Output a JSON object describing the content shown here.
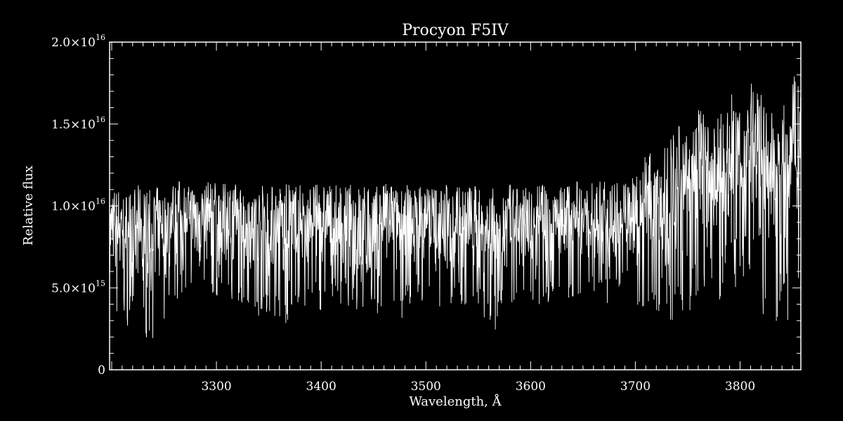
{
  "chart_data": {
    "type": "line",
    "title": "Procyon  F5IV",
    "xlabel": "Wavelength, Å",
    "ylabel": "Relative flux",
    "xlim": [
      3198,
      3858
    ],
    "ylim": [
      0,
      2e+16
    ],
    "x_ticks": [
      {
        "value": 3300,
        "label": "3300"
      },
      {
        "value": 3400,
        "label": "3400"
      },
      {
        "value": 3500,
        "label": "3500"
      },
      {
        "value": 3600,
        "label": "3600"
      },
      {
        "value": 3700,
        "label": "3700"
      },
      {
        "value": 3800,
        "label": "3800"
      }
    ],
    "y_ticks": [
      {
        "value": 0,
        "label": "0",
        "mantissa": "",
        "exponent": ""
      },
      {
        "value": 5000000000000000.0,
        "label": "5.0×10^15",
        "mantissa": "5.0×10",
        "exponent": "15"
      },
      {
        "value": 1e+16,
        "label": "1.0×10^16",
        "mantissa": "1.0×10",
        "exponent": "16"
      },
      {
        "value": 1.5e+16,
        "label": "1.5×10^16",
        "mantissa": "1.5×10",
        "exponent": "16"
      },
      {
        "value": 2e+16,
        "label": "2.0×10^16",
        "mantissa": "2.0×10",
        "exponent": "16"
      }
    ],
    "x_minor_step": 10,
    "y_minor_step": 1000000000000000.0,
    "grid": false,
    "legend": "none",
    "colors": {
      "background": "#000000",
      "foreground": "#ffffff"
    },
    "series": [
      {
        "x": [
          3198,
          3205,
          3212,
          3218,
          3225,
          3232,
          3238,
          3245,
          3252,
          3258,
          3265,
          3272,
          3278,
          3285,
          3292,
          3298,
          3305,
          3312,
          3318,
          3325,
          3332,
          3338,
          3345,
          3352,
          3358,
          3365,
          3372,
          3378,
          3385,
          3392,
          3398,
          3405,
          3412,
          3418,
          3425,
          3432,
          3438,
          3445,
          3452,
          3458,
          3465,
          3472,
          3478,
          3485,
          3492,
          3498,
          3505,
          3512,
          3518,
          3525,
          3532,
          3538,
          3545,
          3552,
          3558,
          3565,
          3572,
          3578,
          3585,
          3592,
          3598,
          3605,
          3612,
          3618,
          3625,
          3632,
          3638,
          3645,
          3652,
          3658,
          3665,
          3672,
          3678,
          3685,
          3692,
          3698,
          3705,
          3712,
          3718,
          3725,
          3732,
          3738,
          3745,
          3752,
          3758,
          3765,
          3772,
          3778,
          3785,
          3792,
          3798,
          3805,
          3812,
          3818,
          3825,
          3832,
          3838,
          3845,
          3852,
          3858
        ],
        "y_upper": [
          1.1e+16,
          1.12e+16,
          1.08e+16,
          1.1e+16,
          1.13e+16,
          1.1e+16,
          1.11e+16,
          1.12e+16,
          1.08e+16,
          1.15e+16,
          1.16e+16,
          1.12e+16,
          1.14e+16,
          1.1e+16,
          1.15e+16,
          1.16e+16,
          1.13e+16,
          1.15e+16,
          1.14e+16,
          1.12e+16,
          1.13e+16,
          1.1e+16,
          1.14e+16,
          1.13e+16,
          1.12e+16,
          1.14e+16,
          1.13e+16,
          1.14e+16,
          1.12e+16,
          1.14e+16,
          1.13e+16,
          1.15e+16,
          1.12e+16,
          1.14e+16,
          1.13e+16,
          1.14e+16,
          1.12e+16,
          1.14e+16,
          1.12e+16,
          1.13e+16,
          1.15e+16,
          1.12e+16,
          1.14e+16,
          1.13e+16,
          1.12e+16,
          1.14e+16,
          1.13e+16,
          1.12e+16,
          1.14e+16,
          1.12e+16,
          1.13e+16,
          1.14e+16,
          1.12e+16,
          1.13e+16,
          1.14e+16,
          1.12e+16,
          1.13e+16,
          1.14e+16,
          1.12e+16,
          1.13e+16,
          1.12e+16,
          1.15e+16,
          1.13e+16,
          1.12e+16,
          1.14e+16,
          1.15e+16,
          1.12e+16,
          1.16e+16,
          1.13e+16,
          1.14e+16,
          1.15e+16,
          1.16e+16,
          1.14e+16,
          1.15e+16,
          1.17e+16,
          1.18e+16,
          1.28e+16,
          1.35e+16,
          1.4e+16,
          1.3e+16,
          1.5e+16,
          1.42e+16,
          1.55e+16,
          1.4e+16,
          1.6e+16,
          1.58e+16,
          1.42e+16,
          1.65e+16,
          1.5e+16,
          1.7e+16,
          1.55e+16,
          1.68e+16,
          1.8e+16,
          1.75e+16,
          1.65e+16,
          1.6e+16,
          1.72e+16,
          1.55e+16,
          1.8e+16,
          1.82e+16
        ],
        "y_lower": [
          4000000000000000.0,
          3000000000000000.0,
          2800000000000000.0,
          2600000000000000.0,
          2400000000000000.0,
          2000000000000000.0,
          1800000000000000.0,
          2500000000000000.0,
          3000000000000000.0,
          3800000000000000.0,
          4500000000000000.0,
          4800000000000000.0,
          5000000000000000.0,
          5500000000000000.0,
          4500000000000000.0,
          4000000000000000.0,
          4200000000000000.0,
          4000000000000000.0,
          3800000000000000.0,
          3500000000000000.0,
          4000000000000000.0,
          3000000000000000.0,
          3800000000000000.0,
          2000000000000000.0,
          3500000000000000.0,
          2200000000000000.0,
          3000000000000000.0,
          3800000000000000.0,
          2800000000000000.0,
          4000000000000000.0,
          3500000000000000.0,
          3000000000000000.0,
          3800000000000000.0,
          3600000000000000.0,
          4000000000000000.0,
          3300000000000000.0,
          3800000000000000.0,
          3200000000000000.0,
          2800000000000000.0,
          3500000000000000.0,
          4000000000000000.0,
          3700000000000000.0,
          3000000000000000.0,
          3800000000000000.0,
          4200000000000000.0,
          3800000000000000.0,
          4000000000000000.0,
          3500000000000000.0,
          3600000000000000.0,
          3800000000000000.0,
          4200000000000000.0,
          3200000000000000.0,
          3800000000000000.0,
          3500000000000000.0,
          3000000000000000.0,
          2200000000000000.0,
          3300000000000000.0,
          3500000000000000.0,
          3000000000000000.0,
          2800000000000000.0,
          3600000000000000.0,
          3800000000000000.0,
          4000000000000000.0,
          3500000000000000.0,
          4000000000000000.0,
          4200000000000000.0,
          4400000000000000.0,
          4500000000000000.0,
          4800000000000000.0,
          4200000000000000.0,
          4500000000000000.0,
          4000000000000000.0,
          3800000000000000.0,
          5000000000000000.0,
          3500000000000000.0,
          3600000000000000.0,
          3800000000000000.0,
          3500000000000000.0,
          3000000000000000.0,
          3200000000000000.0,
          2800000000000000.0,
          2400000000000000.0,
          3000000000000000.0,
          3500000000000000.0,
          4000000000000000.0,
          3800000000000000.0,
          4500000000000000.0,
          4000000000000000.0,
          4200000000000000.0,
          3000000000000000.0,
          3500000000000000.0,
          6000000000000000.0,
          5000000000000000.0,
          3500000000000000.0,
          3200000000000000.0,
          3000000000000000.0,
          2800000000000000.0,
          2600000000000000.0,
          4000000000000000.0,
          6000000000000000.0
        ]
      }
    ]
  }
}
